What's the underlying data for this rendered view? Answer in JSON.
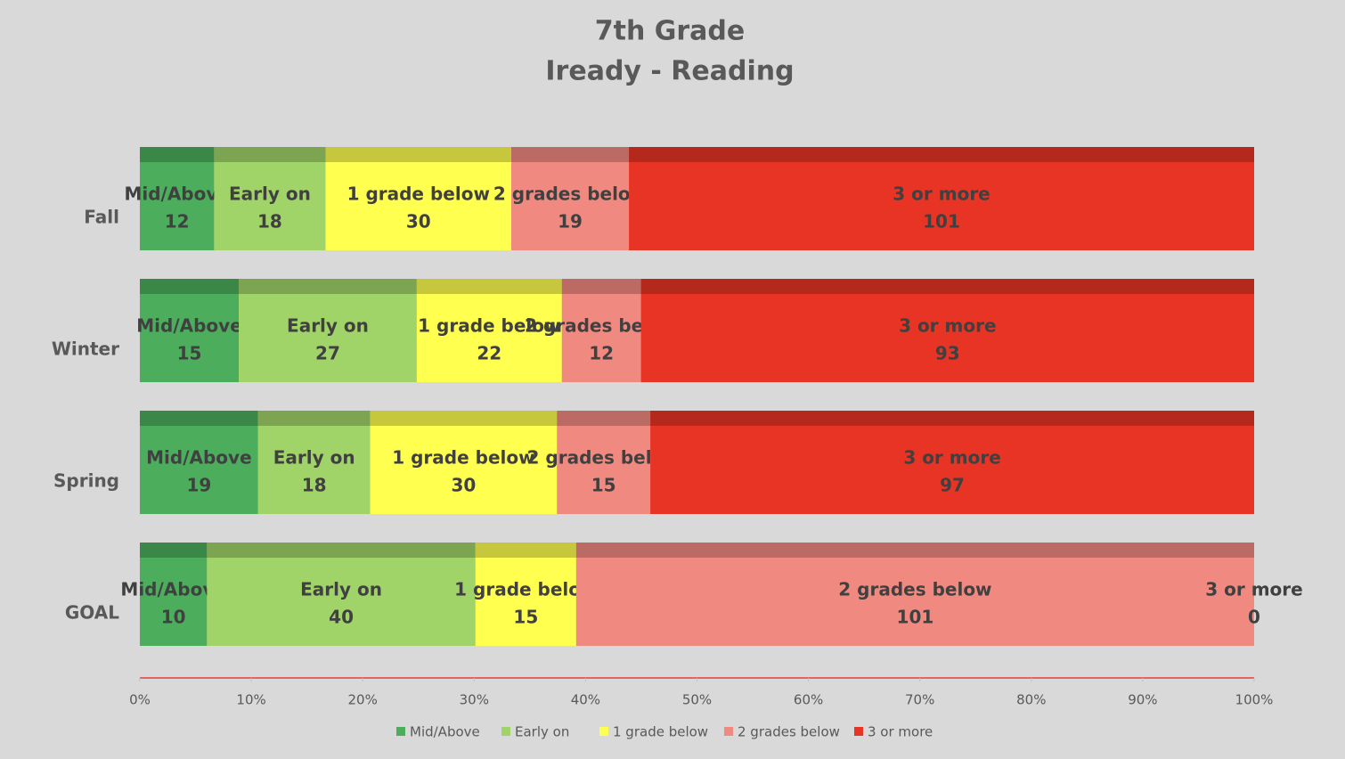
{
  "chart_data": {
    "type": "stacked-bar-100",
    "orientation": "horizontal",
    "title": "7th Grade",
    "subtitle": "Iready - Reading",
    "categories": [
      "Fall",
      "Winter",
      "Spring",
      "GOAL"
    ],
    "series": [
      {
        "name": "Mid/Above",
        "color": "#4cae5c",
        "values": [
          12,
          15,
          19,
          10
        ]
      },
      {
        "name": "Early on",
        "color": "#a0d468",
        "values": [
          18,
          27,
          18,
          40
        ]
      },
      {
        "name": "1 grade below",
        "color": "#ffff4f",
        "values": [
          30,
          22,
          30,
          15
        ]
      },
      {
        "name": "2 grades below",
        "color": "#f08a80",
        "values": [
          19,
          12,
          15,
          101
        ]
      },
      {
        "name": "3 or more",
        "color": "#e83424",
        "values": [
          101,
          93,
          97,
          0
        ]
      }
    ],
    "xlim": [
      0,
      100
    ],
    "xticks": [
      {
        "value": 0,
        "label": "0%"
      },
      {
        "value": 10,
        "label": "10%"
      },
      {
        "value": 20,
        "label": "20%"
      },
      {
        "value": 30,
        "label": "30%"
      },
      {
        "value": 40,
        "label": "40%"
      },
      {
        "value": 50,
        "label": "50%"
      },
      {
        "value": 60,
        "label": "60%"
      },
      {
        "value": 70,
        "label": "70%"
      },
      {
        "value": 80,
        "label": "80%"
      },
      {
        "value": 90,
        "label": "90%"
      },
      {
        "value": 100,
        "label": "100%"
      }
    ],
    "legend": "bottom"
  }
}
